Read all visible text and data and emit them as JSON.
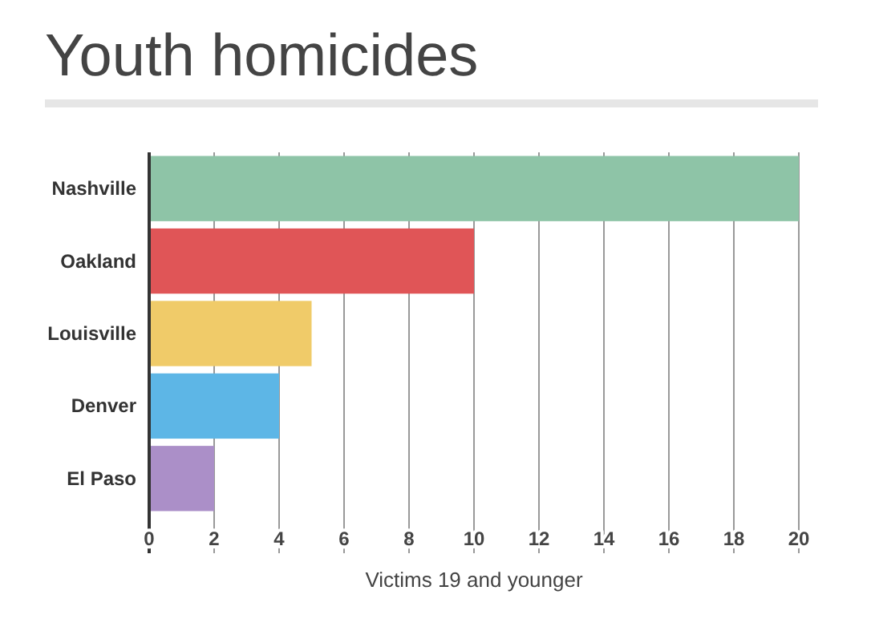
{
  "chart_data": {
    "type": "bar",
    "orientation": "horizontal",
    "title": "Youth homicides",
    "xlabel": "Victims 19 and younger",
    "categories": [
      "Nashville",
      "Oakland",
      "Louisville",
      "Denver",
      "El Paso"
    ],
    "values": [
      20,
      10,
      5,
      4,
      2
    ],
    "colors": [
      "#8ec4a7",
      "#e05557",
      "#f0cb69",
      "#5db6e6",
      "#ab8fc8"
    ],
    "xlim": [
      0,
      20
    ],
    "xticks": [
      0,
      2,
      4,
      6,
      8,
      10,
      12,
      14,
      16,
      18,
      20
    ],
    "grid": "x"
  }
}
